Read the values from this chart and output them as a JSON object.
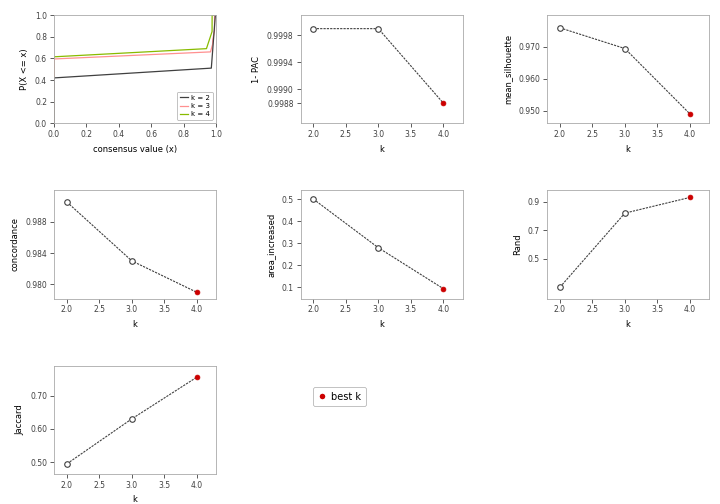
{
  "ecdf_lines": {
    "k2": {
      "color": "#404040",
      "label": "k = 2"
    },
    "k3": {
      "color": "#ff9090",
      "label": "k = 3"
    },
    "k4": {
      "color": "#88bb00",
      "label": "k = 4"
    }
  },
  "pac_data": {
    "k": [
      2,
      3,
      4
    ],
    "y": [
      0.9999,
      0.9999,
      0.9988
    ],
    "best_k": 4,
    "ylabel": "1- PAC",
    "ylim": [
      0.9985,
      1.0001
    ],
    "yticks": [
      0.9988,
      0.999,
      0.9994,
      0.9998
    ]
  },
  "silhouette_data": {
    "k": [
      2,
      3,
      4
    ],
    "y": [
      0.976,
      0.9695,
      0.949
    ],
    "best_k": 4,
    "ylabel": "mean_silhouette",
    "ylim": [
      0.946,
      0.98
    ],
    "yticks": [
      0.95,
      0.96,
      0.97
    ]
  },
  "concordance_data": {
    "k": [
      2,
      3,
      4
    ],
    "y": [
      0.9905,
      0.983,
      0.979
    ],
    "best_k": 4,
    "ylabel": "concordance",
    "ylim": [
      0.9782,
      0.992
    ],
    "yticks": [
      0.98,
      0.984,
      0.988
    ]
  },
  "area_data": {
    "k": [
      2,
      3,
      4
    ],
    "y": [
      0.5,
      0.28,
      0.095
    ],
    "best_k": 4,
    "ylabel": "area_increased",
    "ylim": [
      0.05,
      0.54
    ],
    "yticks": [
      0.1,
      0.2,
      0.3,
      0.4,
      0.5
    ]
  },
  "rand_data": {
    "k": [
      2,
      3,
      4
    ],
    "y": [
      0.3,
      0.82,
      0.93
    ],
    "best_k": 4,
    "ylabel": "Rand",
    "ylim": [
      0.22,
      0.98
    ],
    "yticks": [
      0.5,
      0.7,
      0.9
    ]
  },
  "jaccard_data": {
    "k": [
      2,
      3,
      4
    ],
    "y": [
      0.495,
      0.63,
      0.755
    ],
    "best_k": 4,
    "ylabel": "Jaccard",
    "ylim": [
      0.465,
      0.79
    ],
    "yticks": [
      0.5,
      0.6,
      0.7
    ]
  },
  "best_k_color": "#cc0000",
  "line_color": "#404040",
  "background_color": "white",
  "xlabel_scatter": "k",
  "xlabel_ecdf": "consensus value (x)",
  "ylabel_ecdf": "P(X <= x)",
  "spine_color": "#aaaaaa",
  "tick_color": "#404040"
}
